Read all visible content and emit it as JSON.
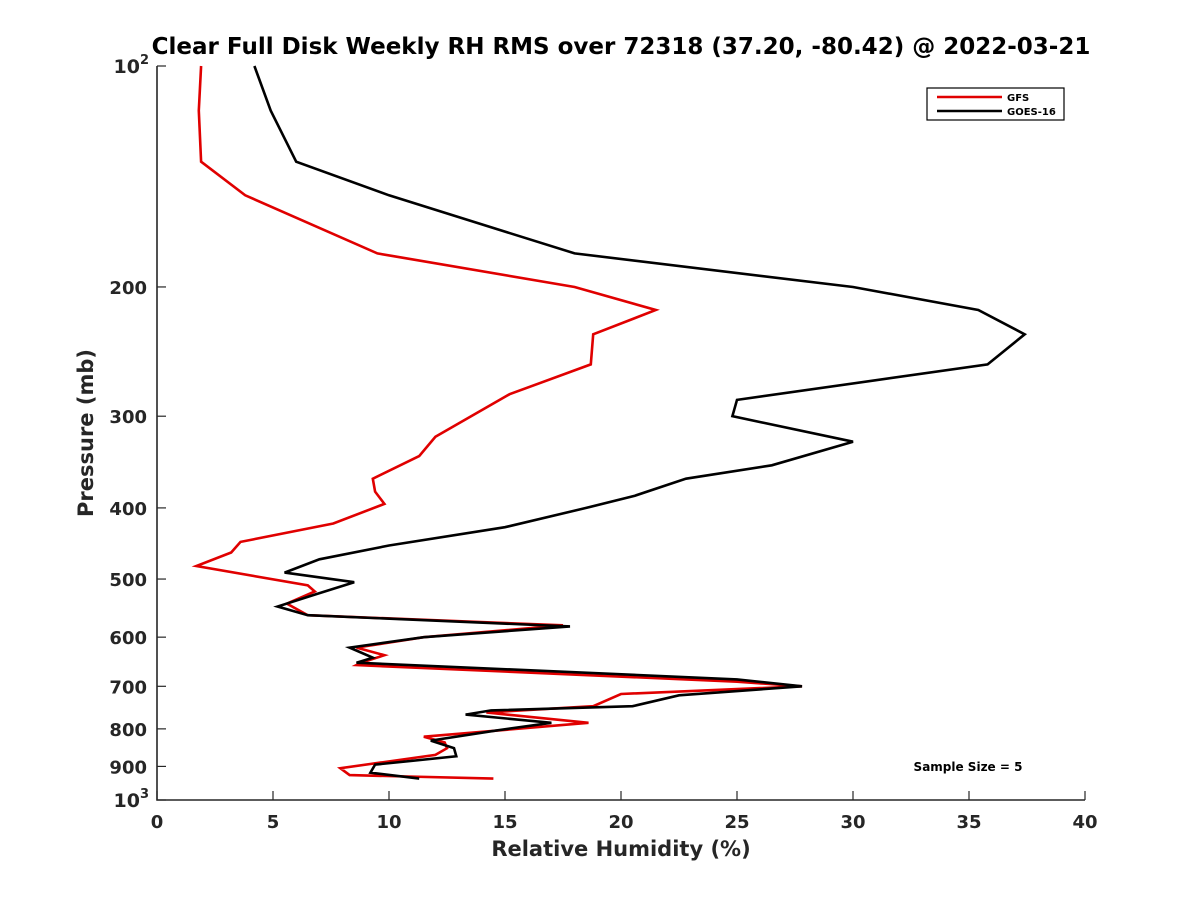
{
  "chart_data": {
    "type": "line",
    "title": "Clear Full Disk Weekly RH RMS over 72318 (37.20, -80.42) @ 2022-03-21",
    "xlabel": "Relative Humidity (%)",
    "ylabel": "Pressure (mb)",
    "xlim": [
      0,
      40
    ],
    "ylim": [
      100,
      1000
    ],
    "y_scale": "log",
    "y_reversed": true,
    "grid": false,
    "legend_position": "top-right",
    "x_ticks": [
      "0",
      "5",
      "10",
      "15",
      "20",
      "25",
      "30",
      "35",
      "40"
    ],
    "y_ticks": [
      {
        "value": 100,
        "base": "10",
        "exp": "2"
      },
      {
        "value": 200,
        "label": "200"
      },
      {
        "value": 300,
        "label": "300"
      },
      {
        "value": 400,
        "label": "400"
      },
      {
        "value": 500,
        "label": "500"
      },
      {
        "value": 600,
        "label": "600"
      },
      {
        "value": 700,
        "label": "700"
      },
      {
        "value": 800,
        "label": "800"
      },
      {
        "value": 900,
        "label": "900"
      },
      {
        "value": 1000,
        "base": "10",
        "exp": "3"
      }
    ],
    "annotation": "Sample Size = 5",
    "series": [
      {
        "name": "GFS",
        "color": "#e00000",
        "points": [
          [
            1.9,
            100
          ],
          [
            1.8,
            115
          ],
          [
            1.9,
            135
          ],
          [
            3.8,
            150
          ],
          [
            9.5,
            180
          ],
          [
            18.0,
            200
          ],
          [
            21.5,
            215
          ],
          [
            18.8,
            232
          ],
          [
            18.7,
            255
          ],
          [
            15.2,
            280
          ],
          [
            12.0,
            320
          ],
          [
            11.3,
            340
          ],
          [
            9.3,
            365
          ],
          [
            9.4,
            380
          ],
          [
            9.8,
            395
          ],
          [
            7.6,
            420
          ],
          [
            3.6,
            445
          ],
          [
            3.2,
            460
          ],
          [
            1.7,
            480
          ],
          [
            6.5,
            510
          ],
          [
            6.8,
            520
          ],
          [
            5.6,
            540
          ],
          [
            6.5,
            560
          ],
          [
            17.5,
            578
          ],
          [
            11.5,
            600
          ],
          [
            8.6,
            620
          ],
          [
            9.8,
            635
          ],
          [
            8.8,
            650
          ],
          [
            8.6,
            655
          ],
          [
            25.0,
            690
          ],
          [
            27.8,
            700
          ],
          [
            20.0,
            717
          ],
          [
            18.8,
            745
          ],
          [
            14.2,
            760
          ],
          [
            18.6,
            785
          ],
          [
            11.5,
            820
          ],
          [
            12.4,
            835
          ],
          [
            12.5,
            850
          ],
          [
            12.0,
            868
          ],
          [
            7.9,
            905
          ],
          [
            8.3,
            925
          ],
          [
            14.5,
            935
          ]
        ]
      },
      {
        "name": "GOES-16",
        "color": "#000000",
        "points": [
          [
            4.2,
            100
          ],
          [
            4.9,
            115
          ],
          [
            6.0,
            135
          ],
          [
            10.0,
            150
          ],
          [
            18.0,
            180
          ],
          [
            30.0,
            200
          ],
          [
            35.4,
            215
          ],
          [
            37.4,
            232
          ],
          [
            35.8,
            255
          ],
          [
            25.0,
            285
          ],
          [
            24.8,
            300
          ],
          [
            30.0,
            325
          ],
          [
            26.5,
            350
          ],
          [
            22.8,
            365
          ],
          [
            20.6,
            385
          ],
          [
            18.5,
            400
          ],
          [
            15.0,
            425
          ],
          [
            10.0,
            450
          ],
          [
            7.0,
            470
          ],
          [
            5.5,
            490
          ],
          [
            8.5,
            505
          ],
          [
            6.8,
            525
          ],
          [
            5.2,
            545
          ],
          [
            6.5,
            560
          ],
          [
            17.8,
            580
          ],
          [
            11.5,
            600
          ],
          [
            8.3,
            620
          ],
          [
            9.3,
            640
          ],
          [
            8.6,
            650
          ],
          [
            25.0,
            685
          ],
          [
            27.8,
            700
          ],
          [
            22.5,
            720
          ],
          [
            20.5,
            745
          ],
          [
            14.4,
            755
          ],
          [
            13.3,
            765
          ],
          [
            17.0,
            785
          ],
          [
            14.5,
            805
          ],
          [
            11.8,
            830
          ],
          [
            12.8,
            850
          ],
          [
            12.9,
            872
          ],
          [
            9.4,
            895
          ],
          [
            9.2,
            918
          ],
          [
            11.3,
            935
          ]
        ]
      }
    ]
  }
}
